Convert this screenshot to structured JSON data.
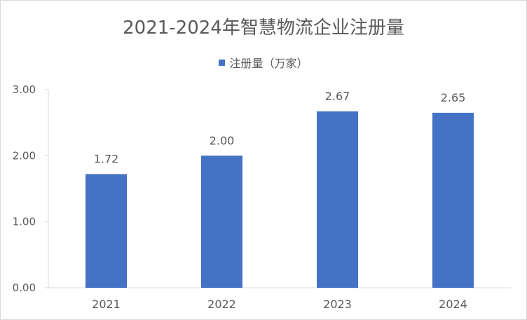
{
  "chart_data": {
    "type": "bar",
    "title": "2021-2024年智慧物流企业注册量",
    "categories": [
      "2021",
      "2022",
      "2023",
      "2024"
    ],
    "series": [
      {
        "name": "注册量（万家）",
        "values": [
          1.72,
          2.0,
          2.67,
          2.65
        ]
      }
    ],
    "data_labels": [
      "1.72",
      "2.00",
      "2.67",
      "2.65"
    ],
    "y_ticks": [
      "0.00",
      "1.00",
      "2.00",
      "3.00"
    ],
    "ylim": [
      0,
      3
    ],
    "xlabel": "",
    "ylabel": "",
    "grid": false,
    "legend_position": "top",
    "colors": {
      "bar": "#4472c4",
      "axis": "#d9d9d9",
      "text": "#595959"
    }
  }
}
